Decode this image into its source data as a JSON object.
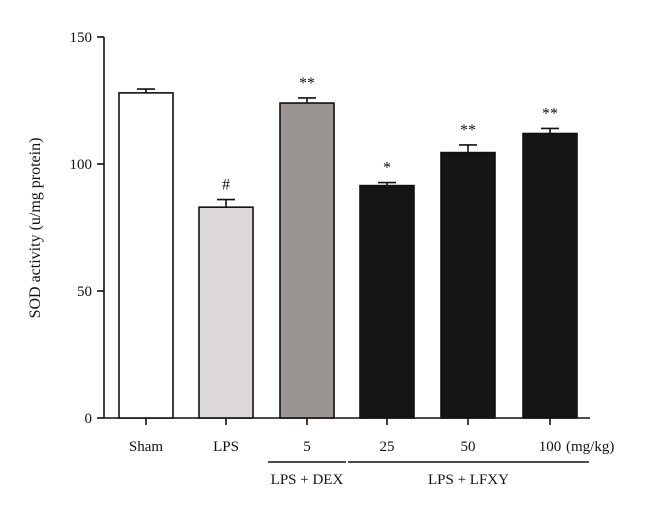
{
  "chart_data": {
    "type": "bar",
    "ylabel": "SOD activity (u/mg protein)",
    "ylim": [
      0,
      150
    ],
    "yticks": [
      "0",
      "50",
      "100",
      "150"
    ],
    "categories": [
      "Sham",
      "LPS",
      "5",
      "25",
      "50",
      "100"
    ],
    "unit_label": "(mg/kg)",
    "values": [
      128,
      83,
      124,
      91.5,
      104.5,
      112
    ],
    "errors": [
      1.5,
      3,
      2,
      1.2,
      3,
      2
    ],
    "significance": [
      "",
      "#",
      "**",
      "*",
      "**",
      "**"
    ],
    "colors": [
      "#ffffff",
      "#dcd8d9",
      "#9a9492",
      "#151515",
      "#151515",
      "#151515"
    ],
    "group_labels": [
      {
        "label": "LPS + DEX",
        "from": 2,
        "to": 2
      },
      {
        "label": "LPS + LFXY",
        "from": 3,
        "to": 5
      }
    ]
  }
}
